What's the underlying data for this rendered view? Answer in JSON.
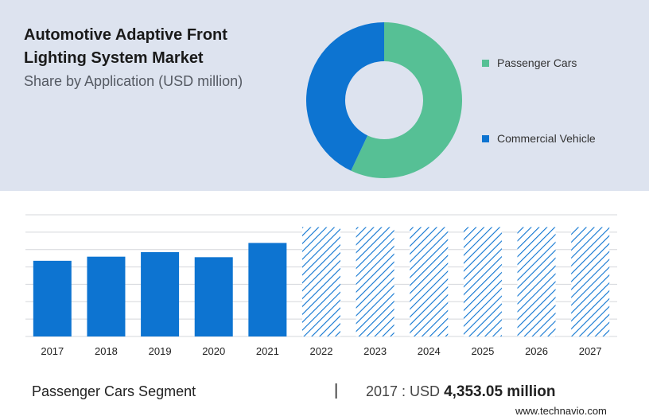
{
  "header": {
    "title": "Automotive Adaptive Front Lighting System Market",
    "subtitle": "Share by Application (USD million)"
  },
  "legend": [
    {
      "label": "Passenger Cars",
      "color": "#56c095"
    },
    {
      "label": "Commercial Vehicle",
      "color": "#0d74d1"
    }
  ],
  "chart_data": [
    {
      "type": "pie",
      "donut": true,
      "categories": [
        "Passenger Cars",
        "Commercial Vehicle"
      ],
      "values": [
        57,
        43
      ],
      "colors": [
        "#56c095",
        "#0d74d1"
      ]
    },
    {
      "type": "bar",
      "categories": [
        "2017",
        "2018",
        "2019",
        "2020",
        "2021",
        "2022",
        "2023",
        "2024",
        "2025",
        "2026",
        "2027"
      ],
      "values": [
        4353.05,
        4590,
        4850,
        4560,
        5380,
        6290,
        6290,
        6290,
        6290,
        6290,
        6290
      ],
      "forecast_from": "2022",
      "forecast_style": "hatched",
      "bar_color": "#0d74d1",
      "ylim": [
        0,
        7000
      ],
      "grid": true
    }
  ],
  "footer": {
    "segment_label": "Passenger Cars Segment",
    "divider": "|",
    "year_text": "2017 : USD ",
    "value_text": "4,353.05 million"
  },
  "brand": "www.technavio.com"
}
